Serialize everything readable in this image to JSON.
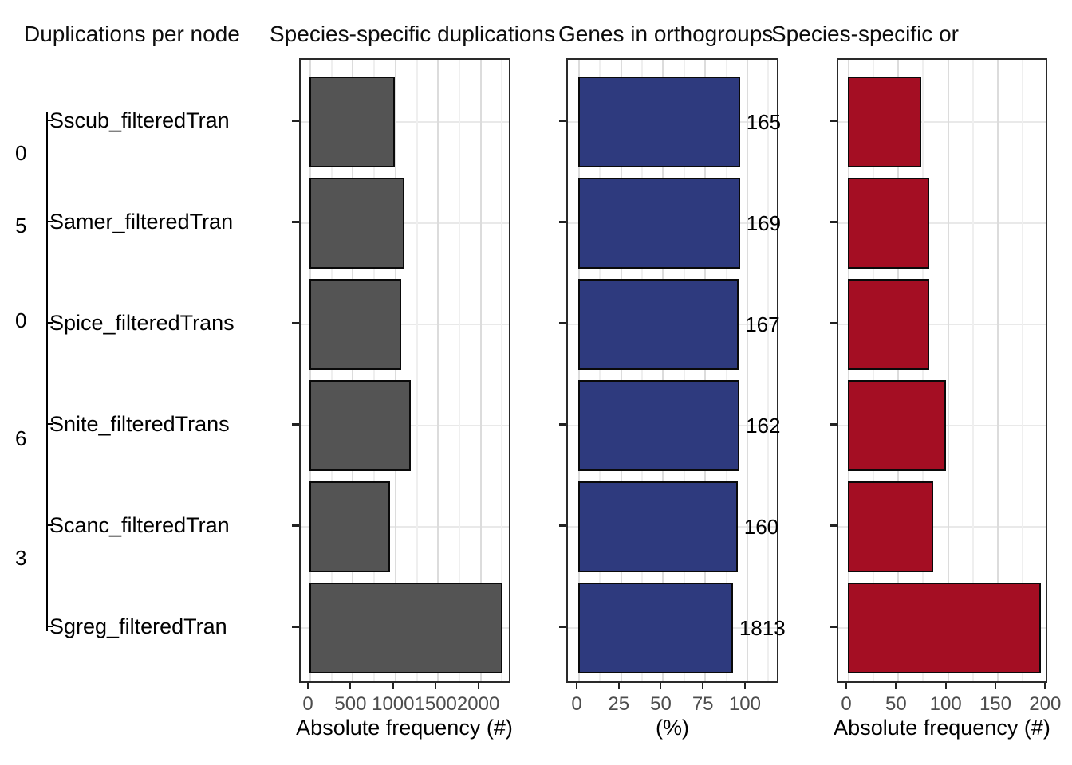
{
  "titles": [
    {
      "text": "Duplications per node"
    },
    {
      "text": "Species-specific duplications"
    },
    {
      "text": "Genes in orthogroups"
    },
    {
      "text": "Species-specific or"
    }
  ],
  "species_labels": [
    "Sscub_filteredTran",
    "Samer_filteredTran",
    "Spice_filteredTrans",
    "Snite_filteredTrans",
    "Scanc_filteredTran",
    "Sgreg_filteredTran"
  ],
  "tree": {
    "title": "Duplications per node",
    "node_label_fragments": [
      "0",
      "5",
      "0",
      "6",
      "3"
    ]
  },
  "colors": {
    "gray_bar": "#545454",
    "blue_bar": "#2E3A7E",
    "red_bar": "#A40E23",
    "bar_outline": "#0a0a0a",
    "panel_border": "#2a2a2a",
    "tick_text": "#4d4d4d"
  },
  "chart_data": [
    {
      "type": "bar",
      "orientation": "horizontal",
      "title": "Species-specific duplications",
      "categories": [
        "Sscub_filteredTran",
        "Samer_filteredTran",
        "Spice_filteredTrans",
        "Snite_filteredTrans",
        "Scanc_filteredTran",
        "Sgreg_filteredTran"
      ],
      "values": [
        1000,
        1110,
        1080,
        1190,
        950,
        2270
      ],
      "xlabel": "Absolute frequency (#)",
      "xticks": [
        0,
        500,
        1000,
        1500,
        2000
      ],
      "xlim": [
        0,
        2380
      ],
      "grid": true,
      "color": "#545454"
    },
    {
      "type": "bar",
      "orientation": "horizontal",
      "title": "Genes in orthogroups",
      "categories": [
        "Sscub_filteredTran",
        "Samer_filteredTran",
        "Spice_filteredTrans",
        "Snite_filteredTrans",
        "Scanc_filteredTran",
        "Sgreg_filteredTran"
      ],
      "values": [
        96.1,
        96.1,
        95.4,
        95.8,
        94.7,
        91.9
      ],
      "bar_labels": [
        "165",
        "169",
        "167",
        "162",
        "160",
        "1813"
      ],
      "xlabel": "(%)",
      "xticks": [
        0,
        25,
        50,
        75,
        100
      ],
      "xlim": [
        0,
        120
      ],
      "grid": true,
      "color": "#2E3A7E"
    },
    {
      "type": "bar",
      "orientation": "horizontal",
      "title": "Species-specific or",
      "categories": [
        "Sscub_filteredTran",
        "Samer_filteredTran",
        "Spice_filteredTrans",
        "Snite_filteredTrans",
        "Scanc_filteredTran",
        "Sgreg_filteredTran"
      ],
      "values": [
        74,
        82,
        82,
        99,
        86,
        194
      ],
      "xlabel": "Absolute frequency (#)",
      "xticks": [
        0,
        50,
        100,
        150,
        200
      ],
      "xlim": [
        0,
        202
      ],
      "grid": true,
      "color": "#A40E23"
    }
  ]
}
